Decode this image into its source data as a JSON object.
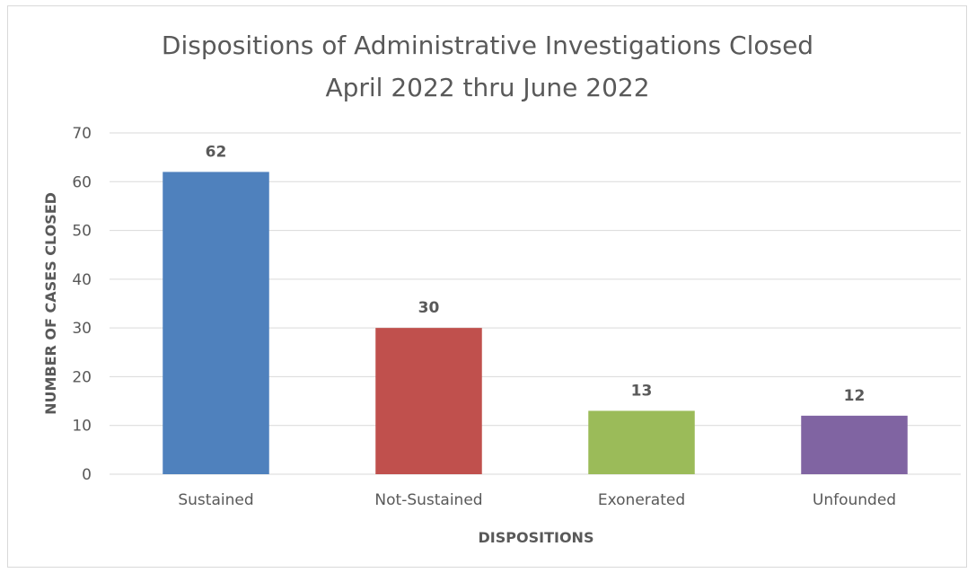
{
  "chart_data": {
    "type": "bar",
    "title": "Dispositions of Administrative Investigations Closed",
    "subtitle": "April 2022 thru June 2022",
    "xlabel": "DISPOSITIONS",
    "ylabel": "NUMBER OF CASES CLOSED",
    "categories": [
      "Sustained",
      "Not-Sustained",
      "Exonerated",
      "Unfounded"
    ],
    "values": [
      62,
      30,
      13,
      12
    ],
    "colors": [
      "#4f81bd",
      "#c0504d",
      "#9bbb59",
      "#8064a2"
    ],
    "ylim": [
      0,
      70
    ],
    "yticks": [
      0,
      10,
      20,
      30,
      40,
      50,
      60,
      70
    ],
    "grid": true,
    "legend": "none",
    "data_labels": true
  }
}
